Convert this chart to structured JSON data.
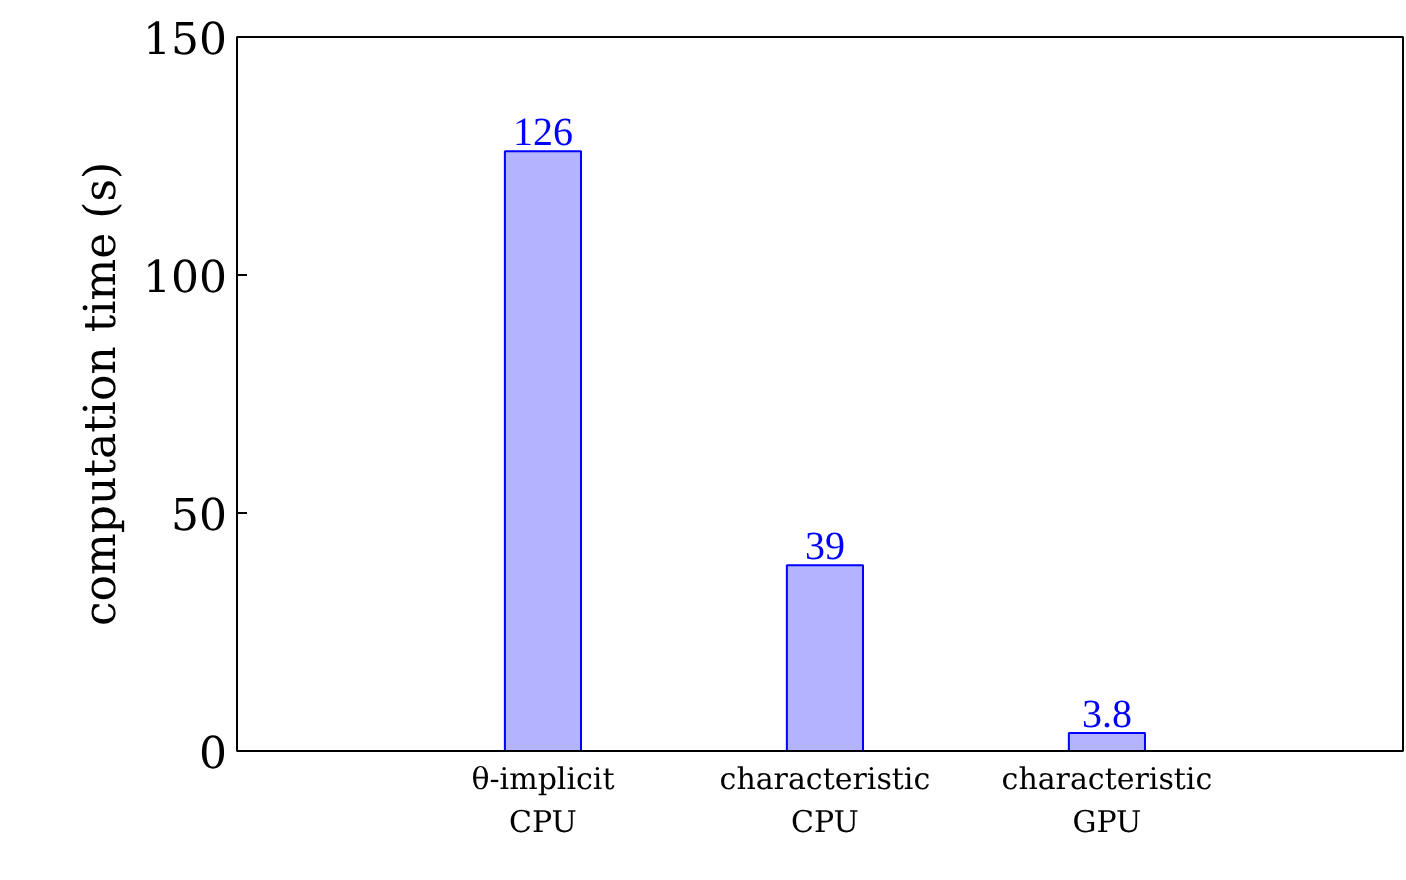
{
  "chart_data": {
    "type": "bar",
    "ylabel": "computation time (s)",
    "categories": [
      "θ-implicit\nCPU",
      "characteristic\nCPU",
      "characteristic\nGPU"
    ],
    "values": [
      126,
      39,
      3.8
    ],
    "color": "#b3b3ff",
    "data_labels": true,
    "ylim": [
      0,
      150
    ],
    "yticks": [
      0,
      50,
      100,
      150
    ],
    "grid": false
  }
}
